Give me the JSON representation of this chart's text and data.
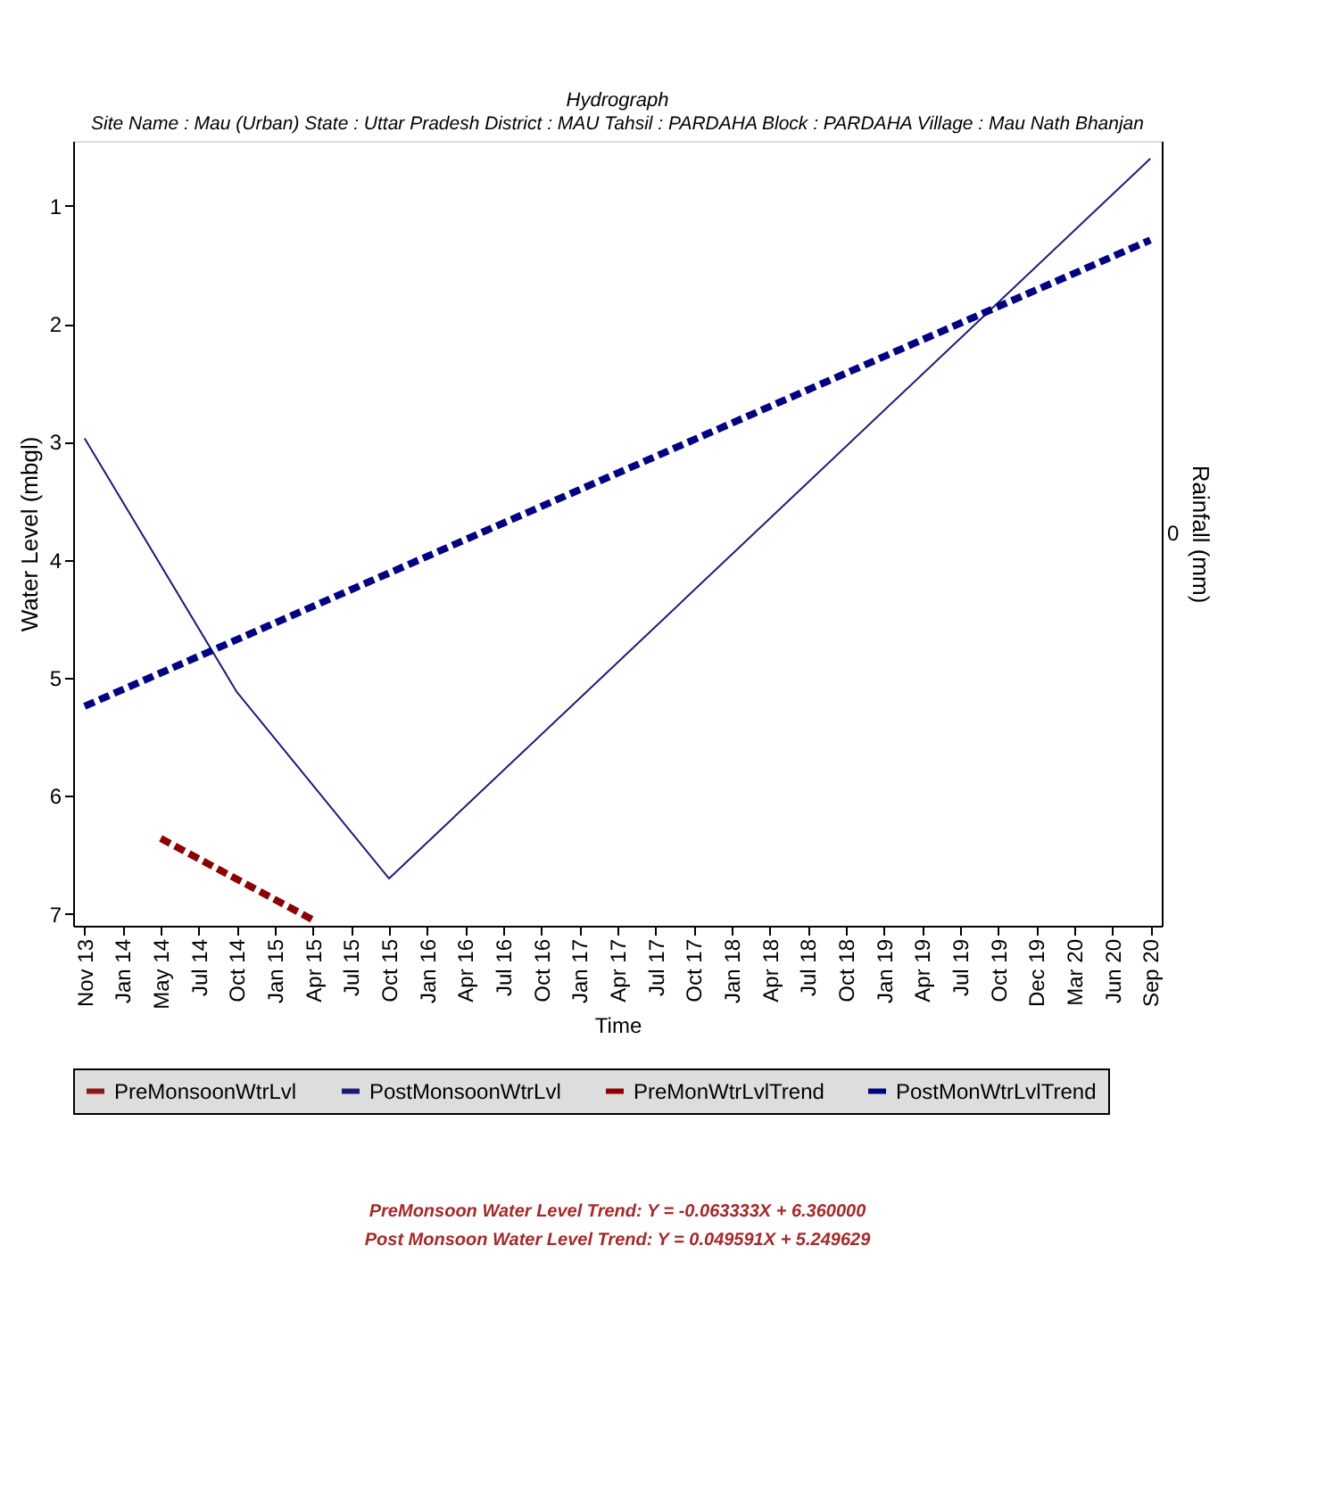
{
  "chart_data": {
    "type": "line",
    "title": "Hydrograph",
    "subtitle": "Site Name : Mau (Urban)  State : Uttar Pradesh District : MAU  Tahsil : PARDAHA  Block : PARDAHA Village : Mau Nath Bhanjan",
    "xlabel": "Time",
    "ylabel": "Water Level (mbgl)",
    "y2label": "Rainfall (mm)",
    "categories": [
      "Nov 13",
      "Jan 14",
      "May 14",
      "Jul 14",
      "Oct 14",
      "Jan 15",
      "Apr 15",
      "Jul 15",
      "Oct 15",
      "Jan 16",
      "Apr 16",
      "Jul 16",
      "Oct 16",
      "Jan 17",
      "Apr 17",
      "Jul 17",
      "Oct 17",
      "Jan 18",
      "Apr 18",
      "Jul 18",
      "Oct 18",
      "Jan 19",
      "Apr 19",
      "Jul 19",
      "Oct 19",
      "Dec 19",
      "Mar 20",
      "Jun 20",
      "Sep 20"
    ],
    "ylim": [
      7.1,
      0.45
    ],
    "yticks": [
      1,
      2,
      3,
      4,
      5,
      6,
      7
    ],
    "grid": false,
    "legend": "bottom",
    "marker": "none",
    "series": [
      {
        "name": "PreMonsoonWtrLvl",
        "color": "#8b1a1a",
        "line_style": "solid",
        "values": [
          null,
          null,
          null,
          null,
          null,
          null,
          null,
          null,
          null,
          null,
          null,
          null,
          null,
          null,
          null,
          null,
          null,
          null,
          null,
          null,
          null,
          null,
          null,
          null,
          null,
          null,
          null,
          null,
          null
        ]
      },
      {
        "name": "PostMonsoonWtrLvl",
        "color": "#1c1c78",
        "line_style": "solid",
        "values": [
          2.97,
          null,
          null,
          null,
          5.12,
          null,
          null,
          null,
          6.7,
          null,
          null,
          null,
          null,
          null,
          null,
          null,
          null,
          null,
          null,
          null,
          null,
          null,
          null,
          null,
          null,
          null,
          null,
          null,
          0.6
        ]
      },
      {
        "name": "PreMonWtrLvlTrend",
        "color": "#8b0000",
        "line_style": "dashed",
        "values": [
          null,
          null,
          6.36,
          null,
          null,
          null,
          7.05,
          null,
          null,
          null,
          null,
          null,
          null,
          null,
          null,
          null,
          null,
          null,
          null,
          null,
          null,
          null,
          null,
          null,
          null,
          null,
          null,
          null,
          null
        ]
      },
      {
        "name": "PostMonWtrLvlTrend",
        "color": "#000080",
        "line_style": "dashed",
        "values": [
          5.24,
          null,
          null,
          null,
          null,
          null,
          null,
          null,
          null,
          null,
          null,
          null,
          null,
          null,
          null,
          null,
          null,
          null,
          null,
          null,
          null,
          null,
          null,
          null,
          null,
          null,
          null,
          null,
          1.29
        ]
      }
    ],
    "annotations": [
      "0",
      "PreMonsoon Water Level Trend: Y = -0.063333X + 6.360000",
      "Post Monsoon Water Level Trend: Y = 0.049591X + 5.249629"
    ]
  }
}
